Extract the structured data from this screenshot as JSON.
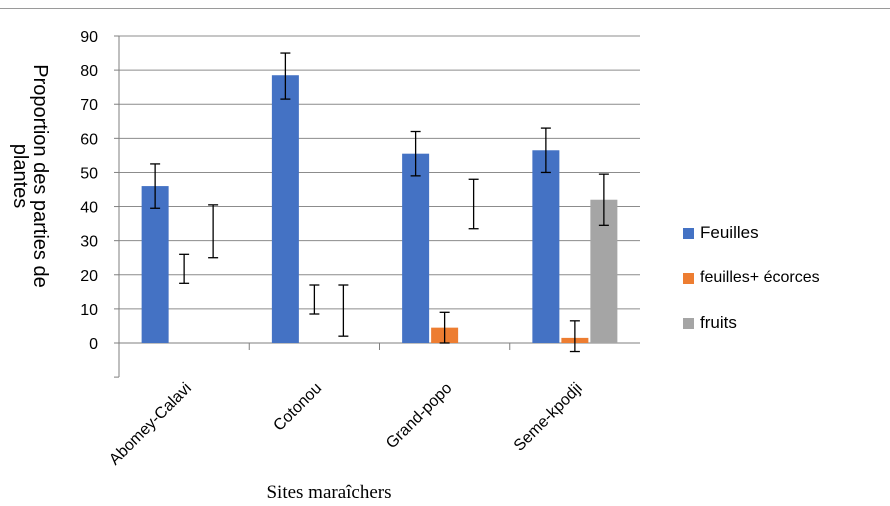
{
  "chart_data": {
    "type": "bar",
    "title": "",
    "xlabel": "Sites maraîchers",
    "ylabel": "Proportion des parties de plantes",
    "ylabel_lines": [
      "Proportion des parties de",
      "plantes"
    ],
    "ylim": [
      -10,
      90
    ],
    "yticks": [
      0,
      10,
      20,
      30,
      40,
      50,
      60,
      70,
      80,
      90
    ],
    "grid": true,
    "legend_position": "right",
    "categories": [
      "Abomey-Calavi",
      "Cotonou",
      "Grand-popo",
      "Seme-kpodji"
    ],
    "series": [
      {
        "name": "Feuilles",
        "color": "#4472C4",
        "values": [
          46,
          78.5,
          55.5,
          56.5
        ],
        "errors": [
          [
            39.5,
            52.5
          ],
          [
            71.5,
            85
          ],
          [
            49,
            62
          ],
          [
            50,
            63
          ]
        ]
      },
      {
        "name": "feuilles+ écorces",
        "color": "#ED7D31",
        "values": [
          0,
          0,
          4.5,
          1.5
        ],
        "errors": [
          [
            17.5,
            26
          ],
          [
            8.5,
            17
          ],
          [
            0,
            9
          ],
          [
            -2.5,
            6.5
          ]
        ]
      },
      {
        "name": "fruits",
        "color": "#A5A5A5",
        "values": [
          0,
          0,
          0,
          42
        ],
        "errors": [
          [
            25,
            40.5
          ],
          [
            2,
            17
          ],
          [
            33.5,
            48
          ],
          [
            34.5,
            49.5
          ]
        ]
      }
    ]
  }
}
